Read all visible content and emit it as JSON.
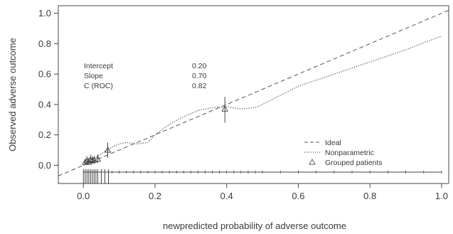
{
  "chart_data": {
    "type": "line",
    "title": "",
    "xlabel": "newpredicted probability of adverse outcome",
    "ylabel": "Observed adverse outcome",
    "xlim": [
      -0.07,
      1.02
    ],
    "ylim": [
      -0.12,
      1.05
    ],
    "grid": false,
    "x_ticks": [
      0.0,
      0.2,
      0.4,
      0.6,
      0.8,
      1.0
    ],
    "x_tick_labels": [
      "0.0",
      "0.2",
      "0.4",
      "0.6",
      "0.8",
      "1.0"
    ],
    "y_ticks": [
      0.0,
      0.2,
      0.4,
      0.6,
      0.8,
      1.0
    ],
    "y_tick_labels": [
      "0.0",
      "0.2",
      "0.4",
      "0.6",
      "0.8",
      "1.0"
    ],
    "stats": [
      {
        "label": "Intercept",
        "value": "0.20"
      },
      {
        "label": "Slope",
        "value": "0.70"
      },
      {
        "label": "C (ROC)",
        "value": "0.82"
      }
    ],
    "legend_position": "bottom-right",
    "series": [
      {
        "name": "Ideal",
        "style": "dashed",
        "x": [
          -0.07,
          1.02
        ],
        "y": [
          -0.07,
          1.02
        ]
      },
      {
        "name": "Nonparametric",
        "style": "dotted",
        "x": [
          0.0,
          0.01,
          0.02,
          0.04,
          0.06,
          0.08,
          0.1,
          0.12,
          0.15,
          0.18,
          0.2,
          0.24,
          0.28,
          0.32,
          0.36,
          0.4,
          0.44,
          0.48,
          0.5,
          0.55,
          0.6,
          0.7,
          0.8,
          0.9,
          1.0
        ],
        "y": [
          0.0,
          0.02,
          0.04,
          0.06,
          0.09,
          0.12,
          0.14,
          0.15,
          0.14,
          0.15,
          0.2,
          0.27,
          0.32,
          0.36,
          0.38,
          0.385,
          0.37,
          0.38,
          0.4,
          0.46,
          0.52,
          0.6,
          0.68,
          0.76,
          0.85
        ]
      },
      {
        "name": "Grouped patients",
        "style": "triangle-markers",
        "x": [
          0.005,
          0.01,
          0.015,
          0.02,
          0.025,
          0.03,
          0.04,
          0.068,
          0.395
        ],
        "y": [
          0.02,
          0.03,
          0.02,
          0.035,
          0.03,
          0.035,
          0.04,
          0.1,
          0.37
        ],
        "err_lo": [
          0.0,
          0.0,
          0.0,
          0.01,
          0.01,
          0.01,
          0.015,
          0.05,
          0.28
        ],
        "err_hi": [
          0.04,
          0.06,
          0.05,
          0.07,
          0.06,
          0.06,
          0.07,
          0.15,
          0.45
        ]
      }
    ],
    "rug": {
      "baseline_y": -0.045,
      "tall_x": [
        0.0,
        0.005,
        0.01,
        0.015,
        0.02,
        0.025,
        0.03,
        0.035,
        0.04,
        0.05,
        0.06,
        0.07
      ],
      "short_x": [
        0.08,
        0.1,
        0.12,
        0.14,
        0.16,
        0.18,
        0.2,
        0.22,
        0.24,
        0.26,
        0.28,
        0.3,
        0.32,
        0.34,
        0.36,
        0.38,
        0.4,
        0.42,
        0.44,
        0.46,
        0.48,
        0.5,
        0.55,
        0.6,
        0.65,
        0.7,
        0.75,
        0.8,
        0.85,
        0.9,
        0.95,
        1.0
      ]
    }
  }
}
